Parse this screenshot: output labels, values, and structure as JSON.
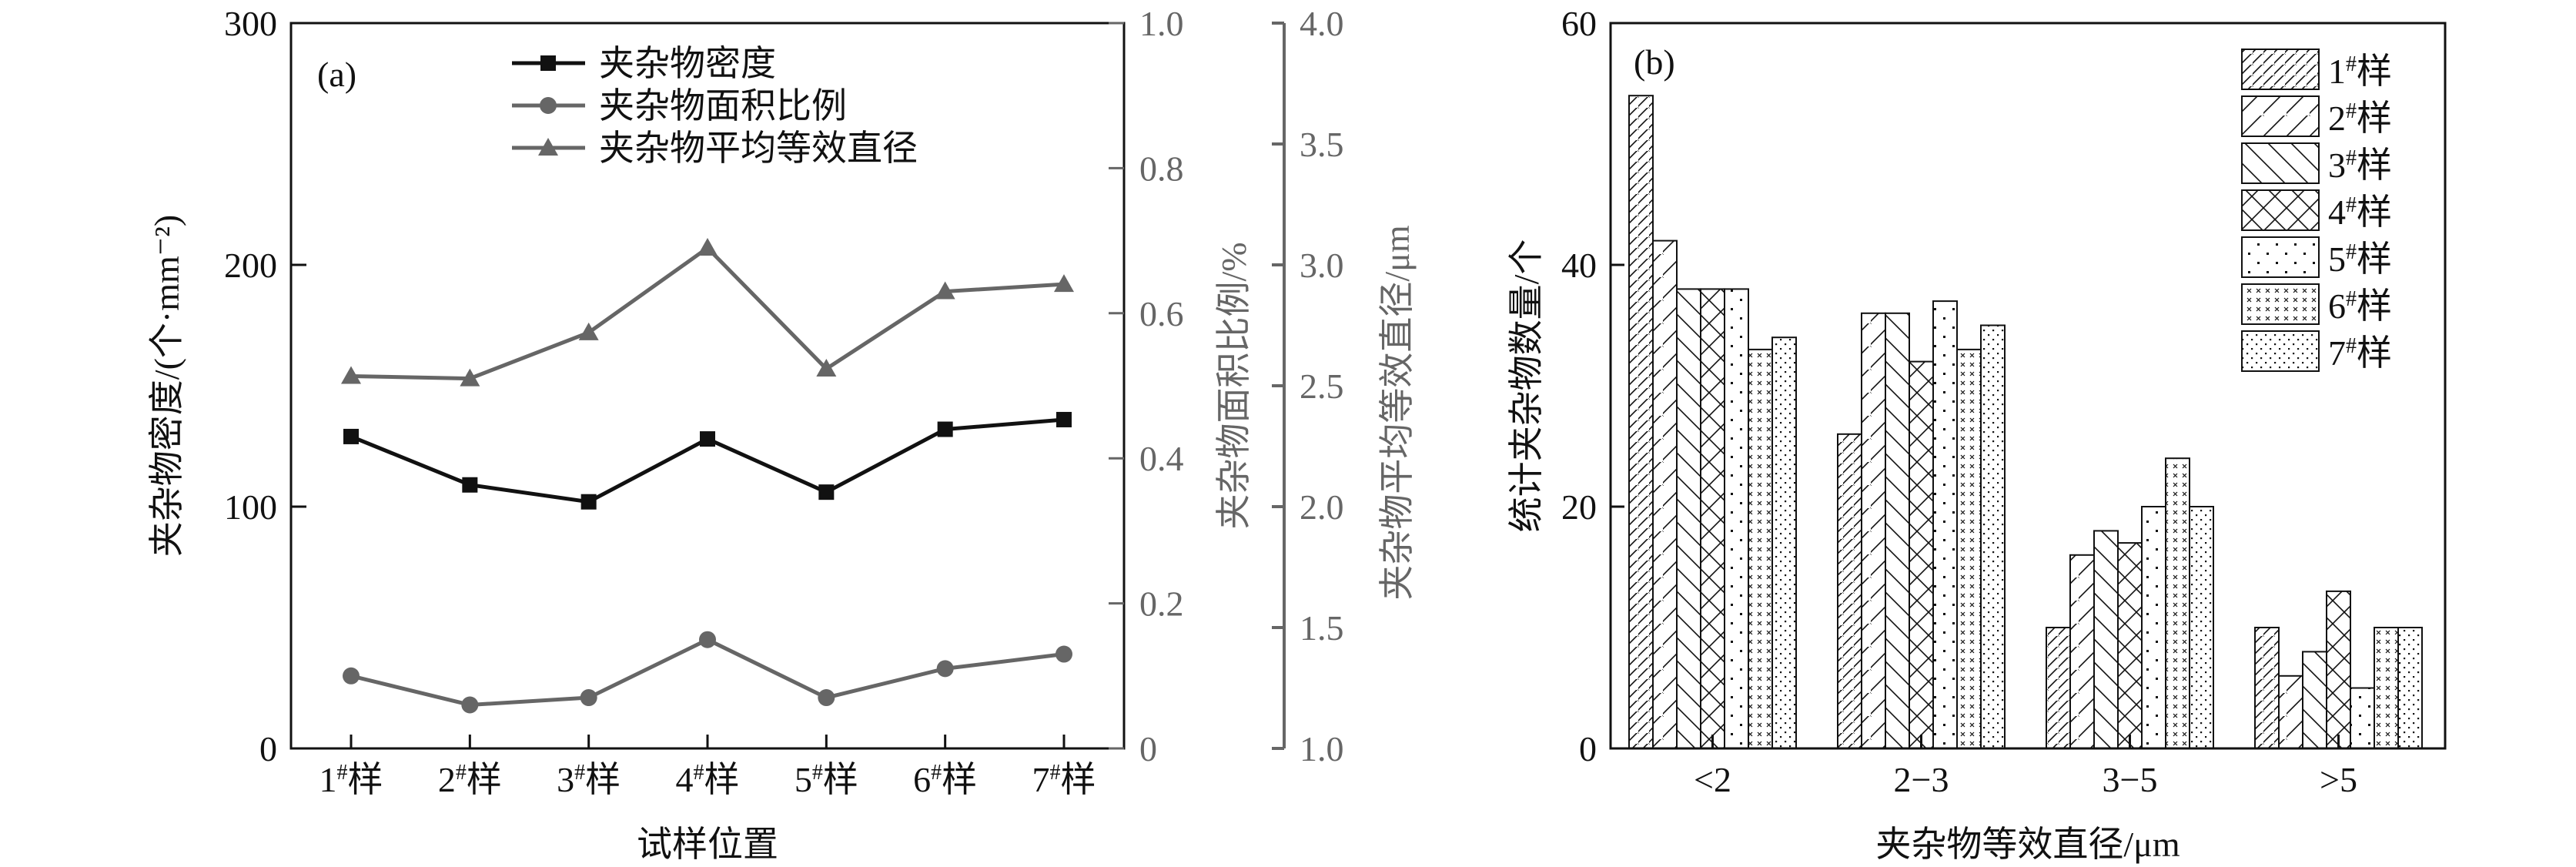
{
  "colors": {
    "black": "#111111",
    "gray": "#666666"
  },
  "chart_data": [
    {
      "type": "line",
      "panel_label": "(a)",
      "xlabel": "试样位置",
      "categories": [
        "1#样",
        "2#样",
        "3#样",
        "4#样",
        "5#样",
        "6#样",
        "7#样"
      ],
      "category_parts": [
        [
          "1",
          "#",
          "样"
        ],
        [
          "2",
          "#",
          "样"
        ],
        [
          "3",
          "#",
          "样"
        ],
        [
          "4",
          "#",
          "样"
        ],
        [
          "5",
          "#",
          "样"
        ],
        [
          "6",
          "#",
          "样"
        ],
        [
          "7",
          "#",
          "样"
        ]
      ],
      "axes": {
        "left": {
          "label": "夹杂物密度/(个·mm⁻²)",
          "ylim": [
            0,
            300
          ],
          "ticks": [
            "0",
            "100",
            "200",
            "300"
          ],
          "color": "#111111"
        },
        "right1": {
          "label": "夹杂物面积比例/%",
          "ylim": [
            0,
            1.0
          ],
          "ticks": [
            "0",
            "0.2",
            "0.4",
            "0.6",
            "0.8",
            "1.0"
          ],
          "color": "#666666"
        },
        "right2": {
          "label": "夹杂物平均等效直径/μm",
          "ylim": [
            1.0,
            4.0
          ],
          "ticks": [
            "1.0",
            "1.5",
            "2.0",
            "2.5",
            "3.0",
            "3.5",
            "4.0"
          ],
          "color": "#666666"
        }
      },
      "legend_position": "top-center",
      "series": [
        {
          "name": "夹杂物密度",
          "axis": "left",
          "marker": "square",
          "color": "#111111",
          "values": [
            129,
            109,
            102,
            128,
            106,
            132,
            136
          ]
        },
        {
          "name": "夹杂物面积比例",
          "axis": "right1",
          "marker": "circle",
          "color": "#666666",
          "values": [
            0.1,
            0.06,
            0.07,
            0.15,
            0.07,
            0.11,
            0.13
          ]
        },
        {
          "name": "夹杂物平均等效直径",
          "axis": "right2",
          "marker": "triangle",
          "color": "#666666",
          "values": [
            2.54,
            2.53,
            2.72,
            3.07,
            2.57,
            2.89,
            2.92
          ]
        }
      ]
    },
    {
      "type": "bar",
      "panel_label": "(b)",
      "xlabel": "夹杂物等效直径/μm",
      "ylabel": "统计夹杂物数量/个",
      "ylim": [
        0,
        60
      ],
      "yticks": [
        "0",
        "20",
        "40",
        "60"
      ],
      "categories": [
        "<2",
        "2−3",
        "3−5",
        ">5"
      ],
      "legend_position": "top-right",
      "series": [
        {
          "name": "1#样",
          "pattern": "dense-diagonal",
          "values": [
            54,
            26,
            10,
            10
          ]
        },
        {
          "name": "2#样",
          "pattern": "diagonal",
          "values": [
            42,
            36,
            16,
            6
          ]
        },
        {
          "name": "3#样",
          "pattern": "back-diagonal",
          "values": [
            38,
            36,
            18,
            8
          ]
        },
        {
          "name": "4#样",
          "pattern": "crosshatch",
          "values": [
            38,
            32,
            17,
            13
          ]
        },
        {
          "name": "5#样",
          "pattern": "sparse-dots",
          "values": [
            38,
            37,
            20,
            5
          ]
        },
        {
          "name": "6#样",
          "pattern": "small-crosses",
          "values": [
            33,
            33,
            24,
            10
          ]
        },
        {
          "name": "7#样",
          "pattern": "dense-dots",
          "values": [
            34,
            35,
            20,
            10
          ]
        }
      ]
    }
  ]
}
